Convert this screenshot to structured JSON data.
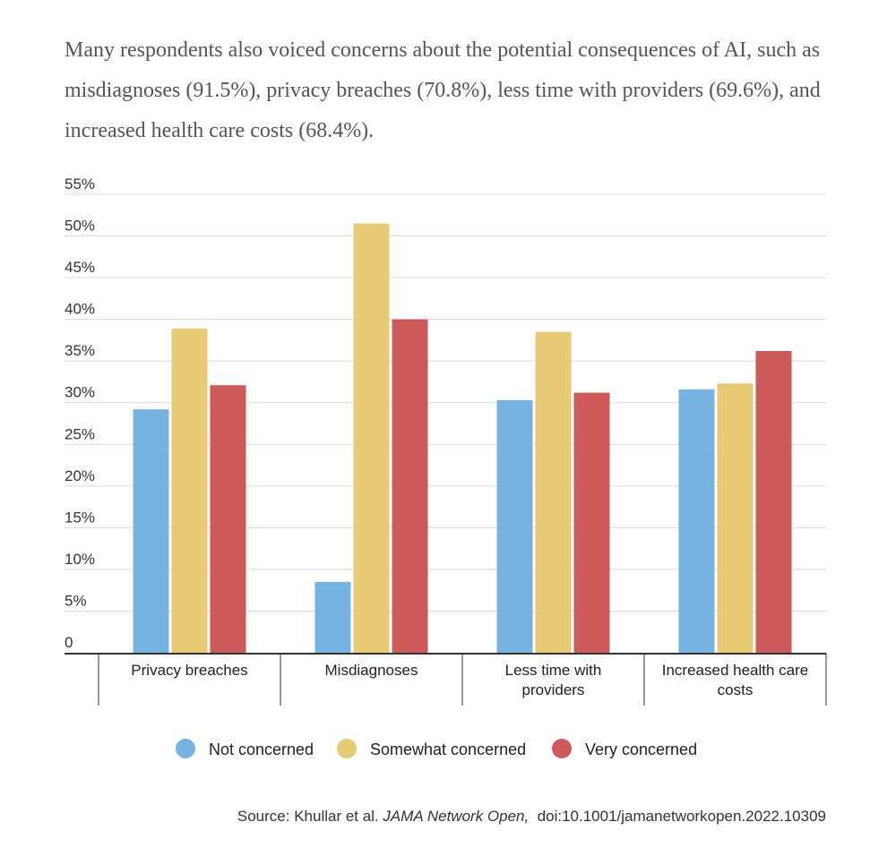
{
  "subtitle": "Many respondents also voiced concerns about the potential consequences of AI, such as misdiagnoses (91.5%), privacy breaches (70.8%), less time with providers (69.6%), and increased health care costs (68.4%).",
  "source": {
    "prefix": "Source: Khullar et al. ",
    "journal": "JAMA Network Open,",
    "doi": "doi:10.1001/jamanetworkopen.2022.10309"
  },
  "chart_data": {
    "type": "bar",
    "categories": [
      [
        "Privacy breaches"
      ],
      [
        "Misdiagnoses"
      ],
      [
        "Less time with",
        "providers"
      ],
      [
        "Increased health care",
        "costs"
      ]
    ],
    "series": [
      {
        "name": "Not concerned",
        "color": "#76b3e0",
        "values": [
          29.2,
          8.5,
          30.3,
          31.6
        ]
      },
      {
        "name": "Somewhat concerned",
        "color": "#e8ca76",
        "values": [
          38.9,
          51.5,
          38.5,
          32.3
        ]
      },
      {
        "name": "Very concerned",
        "color": "#cd5b5b",
        "values": [
          32.1,
          40.0,
          31.2,
          36.2
        ]
      }
    ],
    "yticks": [
      "0",
      "5%",
      "10%",
      "15%",
      "20%",
      "25%",
      "30%",
      "35%",
      "40%",
      "45%",
      "50%",
      "55%"
    ],
    "ylim": [
      0,
      55
    ],
    "grid": true,
    "legend_position": "bottom"
  }
}
